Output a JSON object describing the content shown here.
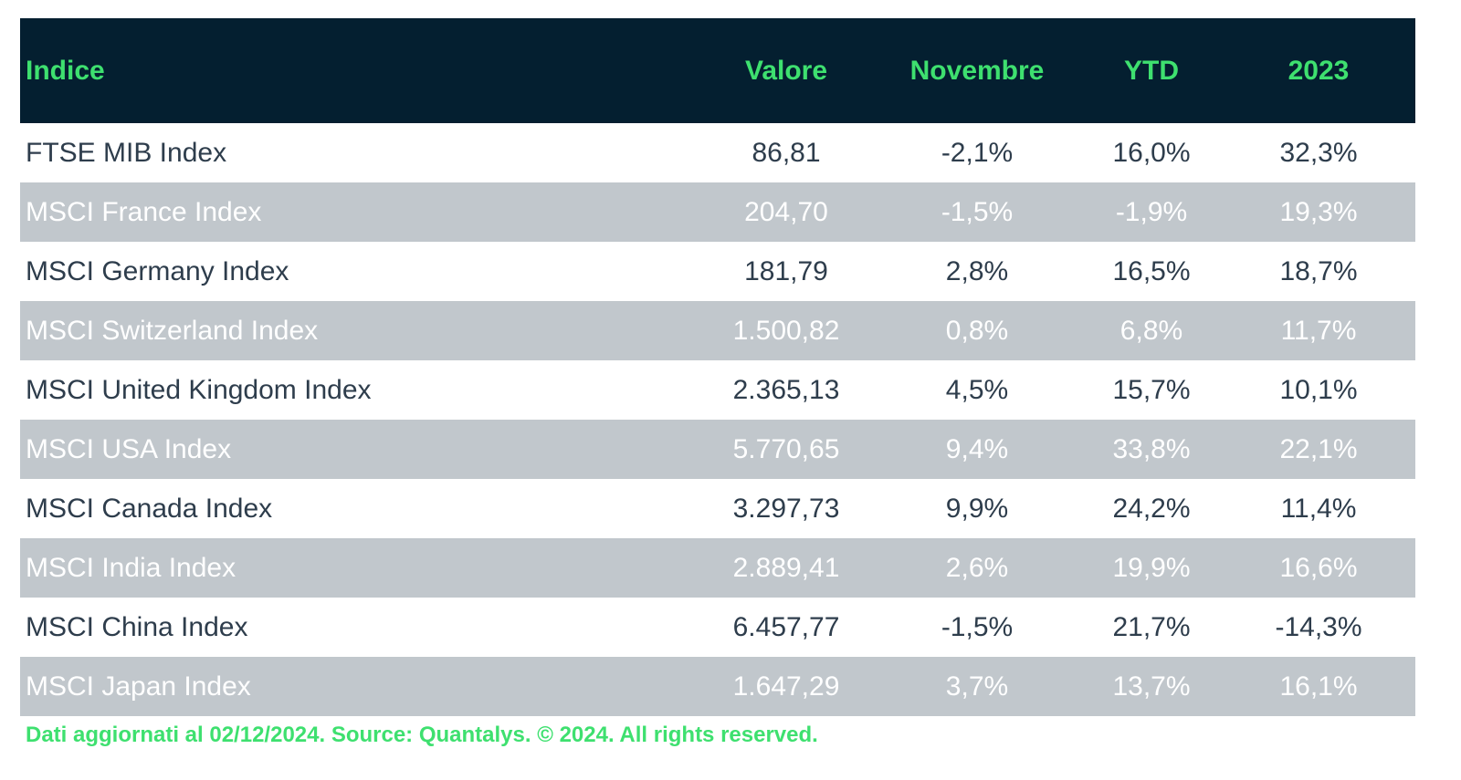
{
  "chart_data": {
    "type": "table",
    "columns": [
      "Indice",
      "Valore",
      "Novembre",
      "YTD",
      "2023"
    ],
    "rows": [
      [
        "FTSE MIB Index",
        "86,81",
        "-2,1%",
        "16,0%",
        "32,3%"
      ],
      [
        "MSCI France Index",
        "204,70",
        "-1,5%",
        "-1,9%",
        "19,3%"
      ],
      [
        "MSCI Germany Index",
        "181,79",
        "2,8%",
        "16,5%",
        "18,7%"
      ],
      [
        "MSCI Switzerland Index",
        "1.500,82",
        "0,8%",
        "6,8%",
        "11,7%"
      ],
      [
        "MSCI United Kingdom Index",
        "2.365,13",
        "4,5%",
        "15,7%",
        "10,1%"
      ],
      [
        "MSCI USA Index",
        "5.770,65",
        "9,4%",
        "33,8%",
        "22,1%"
      ],
      [
        "MSCI Canada Index",
        "3.297,73",
        "9,9%",
        "24,2%",
        "11,4%"
      ],
      [
        "MSCI India Index",
        "2.889,41",
        "2,6%",
        "19,9%",
        "16,6%"
      ],
      [
        "MSCI China Index",
        "6.457,77",
        "-1,5%",
        "21,7%",
        "-14,3%"
      ],
      [
        "MSCI Japan Index",
        "1.647,29",
        "3,7%",
        "13,7%",
        "16,1%"
      ]
    ],
    "footnote": "Dati aggiornati al 02/12/2024. Source: Quantalys. © 2024. All rights reserved."
  },
  "colors": {
    "header_bg": "#041f30",
    "header_text": "#3ee06f",
    "stripe_bg": "#c1c7cc",
    "stripe_text": "#ffffff",
    "body_text": "#2e3d4c",
    "footnote_text": "#3ee06f"
  }
}
